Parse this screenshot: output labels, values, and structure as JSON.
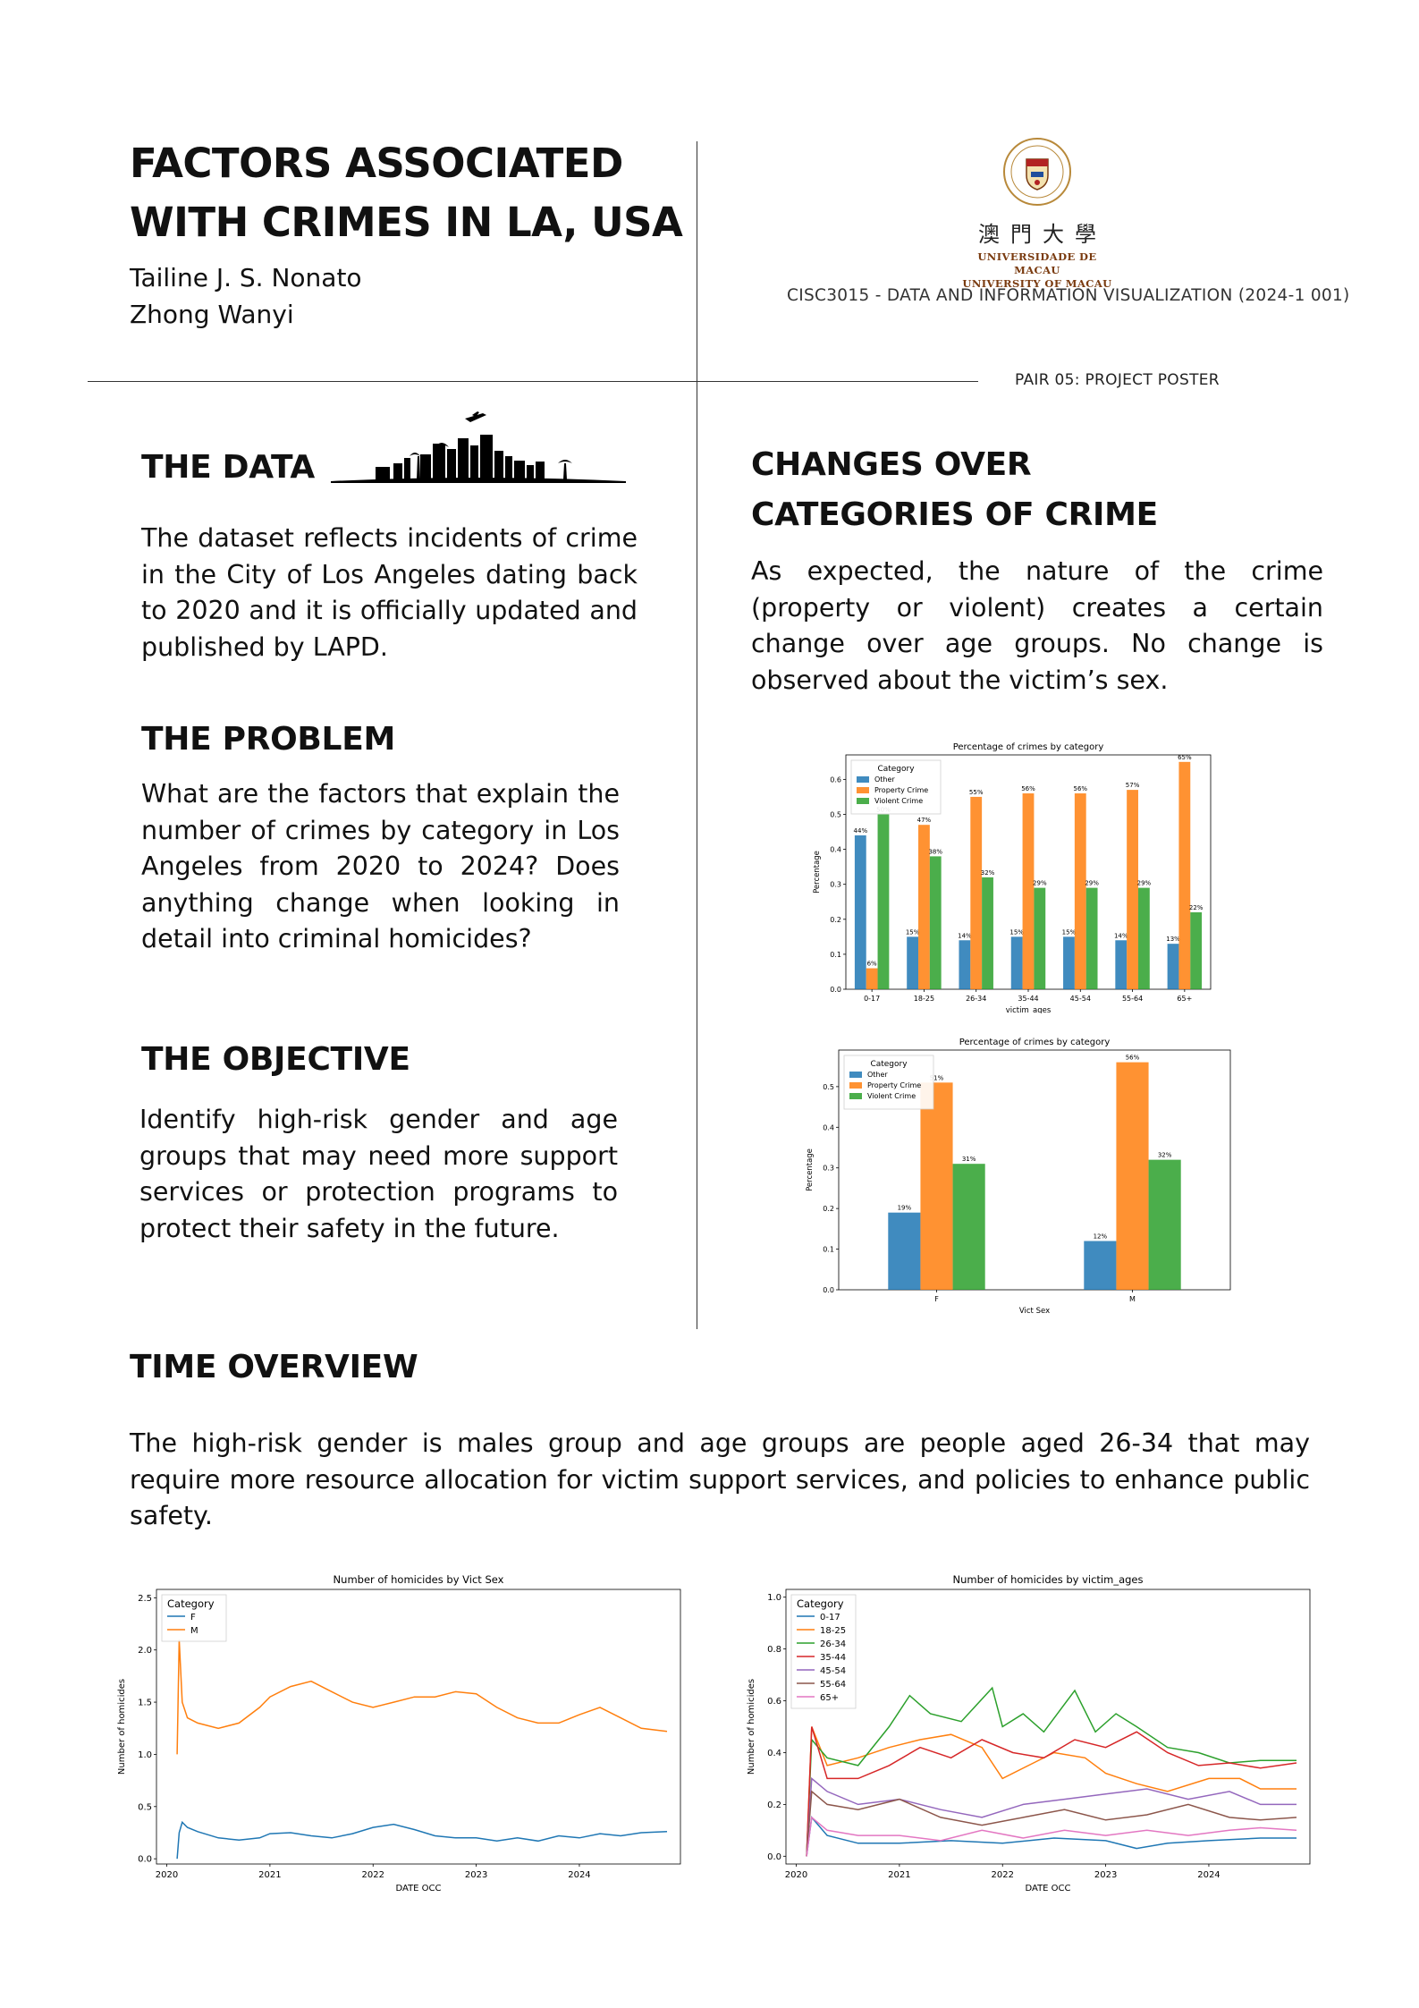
{
  "header": {
    "title_line1": "FACTORS ASSOCIATED",
    "title_line2": "WITH CRIMES IN LA, USA",
    "author1": "Tailine J. S. Nonato",
    "author2": "Zhong Wanyi",
    "university_zh": "澳門大學",
    "university_pt": "UNIVERSIDADE DE MACAU",
    "university_en": "UNIVERSITY OF MACAU",
    "course": "CISC3015 - DATA AND INFORMATION VISUALIZATION (2024-1 001)",
    "pair": "PAIR 05: PROJECT POSTER"
  },
  "sections": {
    "data": {
      "heading": "THE DATA",
      "text": "The dataset reflects incidents of crime in the City of Los Angeles dating back to 2020 and it is officially updated and published by LAPD."
    },
    "problem": {
      "heading": "THE PROBLEM",
      "text": "What are the factors that explain the number of crimes by category in Los Angeles from 2020 to 2024? Does anything change when looking in detail into criminal homicides?"
    },
    "objective": {
      "heading": "THE OBJECTIVE",
      "text": "Identify high-risk gender and age groups that may need more support services or protection programs to protect their safety in the future."
    },
    "changes": {
      "heading_line1": "CHANGES OVER",
      "heading_line2": "CATEGORIES OF CRIME",
      "text": "As expected, the nature of the crime (property or violent) creates a certain change over age groups. No change is observed about the victim’s sex."
    },
    "time": {
      "heading": "TIME OVERVIEW",
      "text": "The high-risk gender is males group and age groups are people aged 26-34 that may require more resource allocation for victim support services, and policies to enhance public safety."
    }
  },
  "colors": {
    "blue": "#1f77b4",
    "orange": "#ff7f0e",
    "green": "#2ca02c",
    "red": "#d62728",
    "purple": "#9467bd",
    "brown": "#8c564b",
    "pink": "#e377c2"
  },
  "chart_data": [
    {
      "type": "bar",
      "title": "Percentage of crimes by category",
      "xlabel": "victim_ages",
      "ylabel": "Percentage",
      "ylim": [
        0,
        0.67
      ],
      "yticks": [
        "0.0",
        "0.1",
        "0.2",
        "0.3",
        "0.4",
        "0.5",
        "0.6"
      ],
      "legend_title": "Category",
      "legend_position": "top-left",
      "categories": [
        "0-17",
        "18-25",
        "26-34",
        "35-44",
        "45-54",
        "55-64",
        "65+"
      ],
      "series": [
        {
          "name": "Other",
          "color": "#1f77b4",
          "values": [
            0.44,
            0.15,
            0.14,
            0.15,
            0.15,
            0.14,
            0.13
          ],
          "labels": [
            "44%",
            "15%",
            "14%",
            "15%",
            "15%",
            "14%",
            "13%"
          ]
        },
        {
          "name": "Property Crime",
          "color": "#ff7f0e",
          "values": [
            0.06,
            0.47,
            0.55,
            0.56,
            0.56,
            0.57,
            0.65
          ],
          "labels": [
            "6%",
            "47%",
            "55%",
            "56%",
            "56%",
            "57%",
            "65%"
          ]
        },
        {
          "name": "Violent Crime",
          "color": "#2ca02c",
          "values": [
            0.5,
            0.38,
            0.32,
            0.29,
            0.29,
            0.29,
            0.22
          ],
          "labels": [
            "50%",
            "38%",
            "32%",
            "29%",
            "29%",
            "29%",
            "22%"
          ]
        }
      ]
    },
    {
      "type": "bar",
      "title": "Percentage of crimes by category",
      "xlabel": "Vict Sex",
      "ylabel": "Percentage",
      "ylim": [
        0,
        0.59
      ],
      "yticks": [
        "0.0",
        "0.1",
        "0.2",
        "0.3",
        "0.4",
        "0.5"
      ],
      "legend_title": "Category",
      "legend_position": "top-left",
      "categories": [
        "F",
        "M"
      ],
      "series": [
        {
          "name": "Other",
          "color": "#1f77b4",
          "values": [
            0.19,
            0.12
          ],
          "labels": [
            "19%",
            "12%"
          ]
        },
        {
          "name": "Property Crime",
          "color": "#ff7f0e",
          "values": [
            0.51,
            0.56
          ],
          "labels": [
            "51%",
            "56%"
          ]
        },
        {
          "name": "Violent Crime",
          "color": "#2ca02c",
          "values": [
            0.31,
            0.32
          ],
          "labels": [
            "31%",
            "32%"
          ]
        }
      ]
    },
    {
      "type": "line",
      "title": "Number of homicides by Vict Sex",
      "xlabel": "DATE OCC",
      "ylabel": "Number of homicides",
      "xlim": [
        2019.9,
        2024.98
      ],
      "ylim": [
        -0.05,
        2.58
      ],
      "xticks": [
        "2020",
        "2021",
        "2022",
        "2023",
        "2024"
      ],
      "yticks": [
        "0.0",
        "0.5",
        "1.0",
        "1.5",
        "2.0",
        "2.5"
      ],
      "legend_title": "Category",
      "legend_position": "top-left",
      "series": [
        {
          "name": "F",
          "color": "#1f77b4",
          "x": [
            2020.1,
            2020.12,
            2020.15,
            2020.2,
            2020.3,
            2020.5,
            2020.7,
            2020.9,
            2021.0,
            2021.2,
            2021.4,
            2021.6,
            2021.8,
            2022.0,
            2022.2,
            2022.4,
            2022.6,
            2022.8,
            2023.0,
            2023.2,
            2023.4,
            2023.6,
            2023.8,
            2024.0,
            2024.2,
            2024.4,
            2024.6,
            2024.85
          ],
          "y": [
            0.0,
            0.25,
            0.35,
            0.3,
            0.26,
            0.2,
            0.18,
            0.2,
            0.24,
            0.25,
            0.22,
            0.2,
            0.24,
            0.3,
            0.33,
            0.28,
            0.22,
            0.2,
            0.2,
            0.17,
            0.2,
            0.17,
            0.22,
            0.2,
            0.24,
            0.22,
            0.25,
            0.26
          ]
        },
        {
          "name": "M",
          "color": "#ff7f0e",
          "x": [
            2020.1,
            2020.12,
            2020.15,
            2020.2,
            2020.3,
            2020.5,
            2020.7,
            2020.9,
            2021.0,
            2021.2,
            2021.4,
            2021.6,
            2021.8,
            2022.0,
            2022.2,
            2022.4,
            2022.6,
            2022.8,
            2023.0,
            2023.2,
            2023.4,
            2023.6,
            2023.8,
            2024.0,
            2024.2,
            2024.4,
            2024.6,
            2024.85
          ],
          "y": [
            1.0,
            2.1,
            1.5,
            1.35,
            1.3,
            1.25,
            1.3,
            1.45,
            1.55,
            1.65,
            1.7,
            1.6,
            1.5,
            1.45,
            1.5,
            1.55,
            1.55,
            1.6,
            1.58,
            1.45,
            1.35,
            1.3,
            1.3,
            1.38,
            1.45,
            1.35,
            1.25,
            1.22
          ]
        }
      ]
    },
    {
      "type": "line",
      "title": "Number of homicides by victim_ages",
      "xlabel": "DATE OCC",
      "ylabel": "Number of homicides",
      "xlim": [
        2019.9,
        2024.98
      ],
      "ylim": [
        -0.03,
        1.03
      ],
      "xticks": [
        "2020",
        "2021",
        "2022",
        "2023",
        "2024"
      ],
      "yticks": [
        "0.0",
        "0.2",
        "0.4",
        "0.6",
        "0.8",
        "1.0"
      ],
      "legend_title": "Category",
      "legend_position": "top-left",
      "series": [
        {
          "name": "0-17",
          "color": "#1f77b4",
          "x": [
            2020.1,
            2020.15,
            2020.3,
            2020.6,
            2021.0,
            2021.5,
            2022.0,
            2022.5,
            2023.0,
            2023.3,
            2023.6,
            2024.0,
            2024.5,
            2024.85
          ],
          "y": [
            0.0,
            0.15,
            0.08,
            0.05,
            0.05,
            0.06,
            0.05,
            0.07,
            0.06,
            0.03,
            0.05,
            0.06,
            0.07,
            0.07
          ]
        },
        {
          "name": "18-25",
          "color": "#ff7f0e",
          "x": [
            2020.1,
            2020.15,
            2020.3,
            2020.6,
            2020.9,
            2021.2,
            2021.5,
            2021.8,
            2022.0,
            2022.3,
            2022.5,
            2022.8,
            2023.0,
            2023.3,
            2023.6,
            2024.0,
            2024.3,
            2024.5,
            2024.85
          ],
          "y": [
            0.0,
            0.5,
            0.35,
            0.38,
            0.42,
            0.45,
            0.47,
            0.42,
            0.3,
            0.36,
            0.4,
            0.38,
            0.32,
            0.28,
            0.25,
            0.3,
            0.3,
            0.26,
            0.26
          ]
        },
        {
          "name": "26-34",
          "color": "#2ca02c",
          "x": [
            2020.1,
            2020.15,
            2020.3,
            2020.6,
            2020.9,
            2021.1,
            2021.3,
            2021.6,
            2021.9,
            2022.0,
            2022.2,
            2022.4,
            2022.7,
            2022.9,
            2023.1,
            2023.3,
            2023.6,
            2023.9,
            2024.2,
            2024.5,
            2024.85
          ],
          "y": [
            0.0,
            0.45,
            0.38,
            0.35,
            0.5,
            0.62,
            0.55,
            0.52,
            0.65,
            0.5,
            0.55,
            0.48,
            0.64,
            0.48,
            0.55,
            0.5,
            0.42,
            0.4,
            0.36,
            0.37,
            0.37
          ]
        },
        {
          "name": "35-44",
          "color": "#d62728",
          "x": [
            2020.1,
            2020.15,
            2020.3,
            2020.6,
            2020.9,
            2021.2,
            2021.5,
            2021.8,
            2022.1,
            2022.4,
            2022.7,
            2023.0,
            2023.3,
            2023.6,
            2023.9,
            2024.2,
            2024.5,
            2024.85
          ],
          "y": [
            0.0,
            0.5,
            0.3,
            0.3,
            0.35,
            0.42,
            0.38,
            0.45,
            0.4,
            0.38,
            0.45,
            0.42,
            0.48,
            0.4,
            0.35,
            0.36,
            0.34,
            0.36
          ]
        },
        {
          "name": "45-54",
          "color": "#9467bd",
          "x": [
            2020.1,
            2020.15,
            2020.3,
            2020.6,
            2021.0,
            2021.4,
            2021.8,
            2022.2,
            2022.6,
            2023.0,
            2023.4,
            2023.8,
            2024.2,
            2024.5,
            2024.85
          ],
          "y": [
            0.0,
            0.3,
            0.25,
            0.2,
            0.22,
            0.18,
            0.15,
            0.2,
            0.22,
            0.24,
            0.26,
            0.22,
            0.25,
            0.2,
            0.2
          ]
        },
        {
          "name": "55-64",
          "color": "#8c564b",
          "x": [
            2020.1,
            2020.15,
            2020.3,
            2020.6,
            2021.0,
            2021.4,
            2021.8,
            2022.2,
            2022.6,
            2023.0,
            2023.4,
            2023.8,
            2024.2,
            2024.5,
            2024.85
          ],
          "y": [
            0.0,
            0.25,
            0.2,
            0.18,
            0.22,
            0.15,
            0.12,
            0.15,
            0.18,
            0.14,
            0.16,
            0.2,
            0.15,
            0.14,
            0.15
          ]
        },
        {
          "name": "65+",
          "color": "#e377c2",
          "x": [
            2020.1,
            2020.15,
            2020.3,
            2020.6,
            2021.0,
            2021.4,
            2021.8,
            2022.2,
            2022.6,
            2023.0,
            2023.4,
            2023.8,
            2024.2,
            2024.5,
            2024.85
          ],
          "y": [
            0.0,
            0.15,
            0.1,
            0.08,
            0.08,
            0.06,
            0.1,
            0.07,
            0.1,
            0.08,
            0.1,
            0.08,
            0.1,
            0.11,
            0.1
          ]
        }
      ]
    }
  ]
}
